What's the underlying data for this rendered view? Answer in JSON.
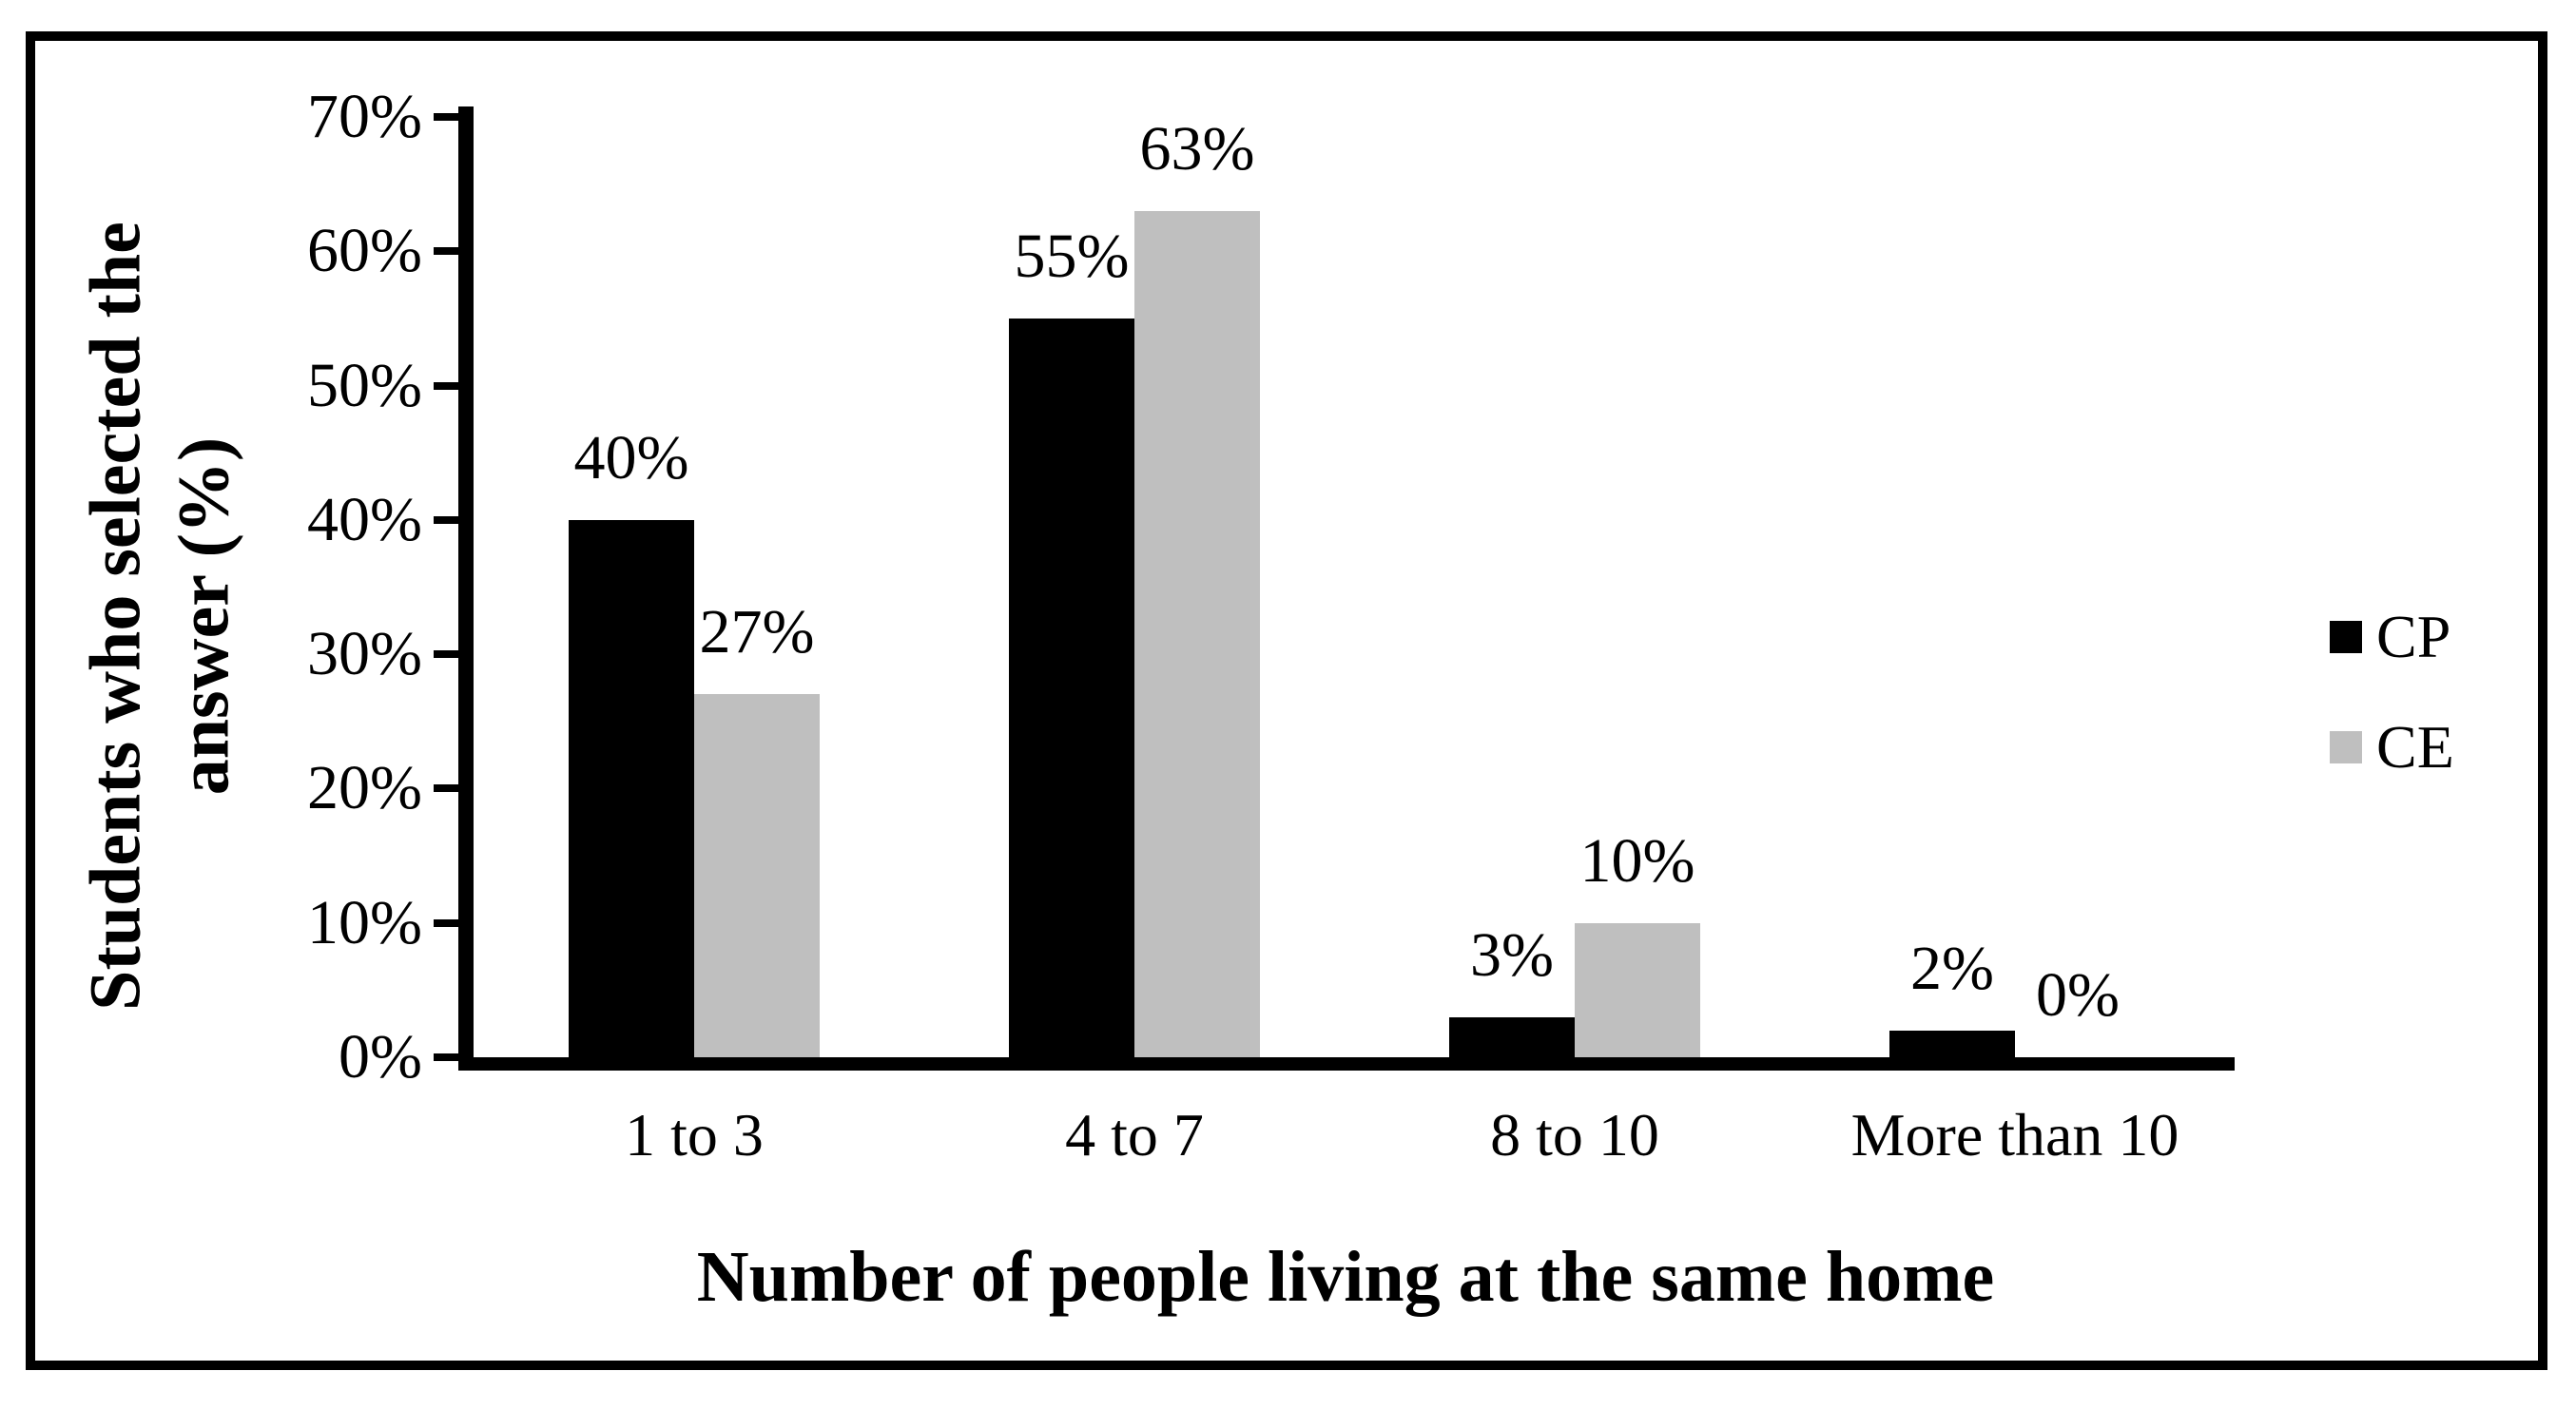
{
  "chart_data": {
    "type": "bar",
    "title": "",
    "categories": [
      "1 to 3",
      "4 to 7",
      "8 to 10",
      "More than 10"
    ],
    "series": [
      {
        "name": "CP",
        "color": "#000000",
        "values": [
          40,
          55,
          3,
          2
        ],
        "labels": [
          "40%",
          "55%",
          "3%",
          "2%"
        ]
      },
      {
        "name": "CE",
        "color": "#bfbfbf",
        "values": [
          27,
          63,
          10,
          0
        ],
        "labels": [
          "27%",
          "63%",
          "10%",
          "0%"
        ]
      }
    ],
    "xlabel": "Number of people living at the same home",
    "ylabel_lines": [
      "Students who selected the",
      "answer (%)"
    ],
    "ylim": [
      0,
      70
    ],
    "ytick_step": 10,
    "ytick_labels": [
      "0%",
      "10%",
      "20%",
      "30%",
      "40%",
      "50%",
      "60%",
      "70%"
    ],
    "grid": false,
    "legend_position": "right",
    "colors": {
      "axis": "#000000",
      "text": "#000000",
      "background": "#ffffff",
      "frame_border": "#000000"
    }
  }
}
